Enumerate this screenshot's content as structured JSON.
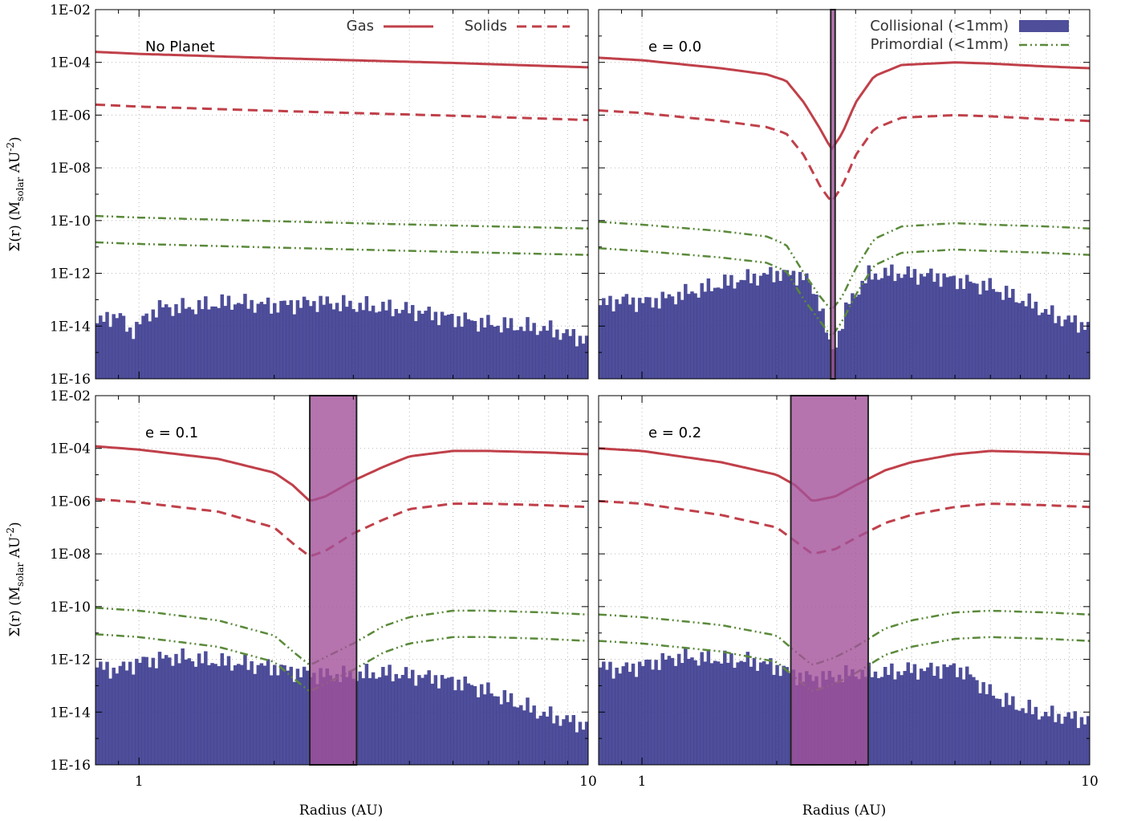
{
  "figure": {
    "y_label_sigma": "Σ(r) (M",
    "y_label_sub": "solar",
    "y_label_au": " AU",
    "y_label_sup": "-2",
    "y_label_close": ")",
    "x_label": "Radius (AU)"
  },
  "legend": {
    "gas": "Gas",
    "solids": "Solids",
    "collisional": "Collisional (<1mm)",
    "primordial": "Primordial (<1mm)"
  },
  "colors": {
    "gas": "#c0404a",
    "solids": "#c0404a",
    "primordial": "#5a8a3a",
    "collisional": "#3b3b8f",
    "planet_zone": "#a3519a"
  },
  "chart_data": [
    {
      "type": "line",
      "label": "No Planet",
      "xscale": "log",
      "yscale": "log",
      "xlim": [
        0.8,
        10
      ],
      "ylim": [
        1e-16,
        0.01
      ],
      "xticks": [
        "1",
        "10"
      ],
      "yticks": [
        "1E-02",
        "1E-04",
        "1E-06",
        "1E-08",
        "1E-10",
        "1E-12",
        "1E-14",
        "1E-16"
      ],
      "grid": true,
      "planet_zone": null,
      "series": [
        {
          "name": "Gas",
          "style": "solid",
          "x": [
            0.8,
            1,
            2,
            3,
            5,
            10
          ],
          "y": [
            0.00025,
            0.00021,
            0.000145,
            0.00012,
            9.5e-05,
            6.5e-05
          ]
        },
        {
          "name": "Solids",
          "style": "dash",
          "x": [
            0.8,
            1,
            2,
            3,
            5,
            10
          ],
          "y": [
            2.5e-06,
            2.1e-06,
            1.45e-06,
            1.2e-06,
            9.5e-07,
            6.5e-07
          ]
        },
        {
          "name": "Primordial (<1mm)",
          "style": "dashdotdot",
          "x": [
            0.8,
            1,
            2,
            3,
            5,
            10
          ],
          "y": [
            1.5e-10,
            1.3e-10,
            9.5e-11,
            8e-11,
            6.5e-11,
            5e-11
          ]
        },
        {
          "name": "Primordial (<1mm)",
          "style": "dashdotdot",
          "x": [
            0.8,
            1,
            2,
            3,
            5,
            10
          ],
          "y": [
            1.5e-11,
            1.3e-11,
            9.5e-12,
            8e-12,
            6.5e-12,
            5e-12
          ]
        },
        {
          "name": "Collisional (<1mm)",
          "style": "hist",
          "x": [
            0.8,
            0.9,
            0.95,
            1.0,
            1.1,
            1.3,
            1.6,
            2.0,
            2.5,
            3.0,
            4.0,
            5.0,
            6.0,
            8.0,
            10.0
          ],
          "y": [
            1.2e-14,
            3e-14,
            6e-15,
            1.2e-14,
            5e-14,
            5e-14,
            8e-14,
            6e-14,
            8e-14,
            6e-14,
            4e-14,
            2e-14,
            1.2e-14,
            8e-15,
            3e-15
          ]
        }
      ]
    },
    {
      "type": "line",
      "label": "e = 0.0",
      "xscale": "log",
      "yscale": "log",
      "xlim": [
        0.8,
        10
      ],
      "ylim": [
        1e-16,
        0.01
      ],
      "xticks": [
        "1",
        "10"
      ],
      "yticks": [],
      "grid": true,
      "planet_zone": [
        2.64,
        2.7
      ],
      "series": [
        {
          "name": "Gas",
          "style": "solid",
          "x": [
            0.8,
            1,
            1.5,
            1.9,
            2.1,
            2.3,
            2.5,
            2.65,
            2.8,
            3.0,
            3.3,
            3.8,
            5.0,
            6.0,
            8.0,
            10.0
          ],
          "y": [
            0.00015,
            0.00012,
            6e-05,
            3.5e-05,
            2e-05,
            3e-06,
            3e-07,
            5e-08,
            2e-07,
            3e-06,
            3e-05,
            8e-05,
            0.0001,
            9e-05,
            7e-05,
            6e-05
          ]
        },
        {
          "name": "Solids",
          "style": "dash",
          "x": [
            0.8,
            1,
            1.5,
            1.9,
            2.1,
            2.3,
            2.5,
            2.65,
            2.8,
            3.0,
            3.3,
            3.8,
            5.0,
            6.0,
            8.0,
            10.0
          ],
          "y": [
            1.5e-06,
            1.2e-06,
            6e-07,
            3.5e-07,
            2e-07,
            3e-08,
            2e-09,
            5e-10,
            2e-09,
            3e-08,
            3e-07,
            8e-07,
            1e-06,
            9e-07,
            7e-07,
            6e-07
          ]
        },
        {
          "name": "Primordial (<1mm)",
          "style": "dashdotdot",
          "x": [
            0.8,
            1,
            1.5,
            1.9,
            2.1,
            2.3,
            2.5,
            2.65,
            2.8,
            3.0,
            3.3,
            3.8,
            5.0,
            6.0,
            8.0,
            10.0
          ],
          "y": [
            9e-11,
            7e-11,
            4e-11,
            2.5e-11,
            1.2e-11,
            1e-12,
            1.3e-13,
            4e-14,
            1.3e-13,
            1.5e-12,
            2e-11,
            6e-11,
            8e-11,
            7e-11,
            6e-11,
            5e-11
          ]
        },
        {
          "name": "Primordial (<1mm)",
          "style": "dashdotdot",
          "x": [
            0.8,
            1,
            1.5,
            1.9,
            2.1,
            2.3,
            2.5,
            2.65,
            2.8,
            3.0,
            3.3,
            3.8,
            5.0,
            6.0,
            8.0,
            10.0
          ],
          "y": [
            9e-12,
            7e-12,
            4e-12,
            2.5e-12,
            1.2e-12,
            1e-13,
            1.5e-14,
            4e-15,
            1.5e-14,
            1.5e-13,
            2e-12,
            6e-12,
            8e-12,
            7e-12,
            6e-12,
            5e-12
          ]
        },
        {
          "name": "Collisional (<1mm)",
          "style": "hist",
          "x": [
            0.8,
            0.9,
            1.0,
            1.1,
            1.3,
            1.6,
            2.0,
            2.3,
            2.5,
            2.64,
            2.7,
            2.9,
            3.2,
            3.6,
            4.5,
            6.0,
            7.5,
            8.5,
            10.0
          ],
          "y": [
            6e-14,
            1e-13,
            8e-14,
            1e-13,
            2e-13,
            5e-13,
            1e-12,
            8e-13,
            8e-14,
            1e-15,
            2e-15,
            8e-14,
            8e-13,
            1e-12,
            8e-13,
            3e-13,
            6e-14,
            2e-14,
            1e-14
          ]
        }
      ]
    },
    {
      "type": "line",
      "label": "e = 0.1",
      "xscale": "log",
      "yscale": "log",
      "xlim": [
        0.8,
        10
      ],
      "ylim": [
        1e-16,
        0.01
      ],
      "xticks": [
        "1",
        "10"
      ],
      "yticks": [
        "1E-02",
        "1E-04",
        "1E-06",
        "1E-08",
        "1E-10",
        "1E-12",
        "1E-14",
        "1E-16"
      ],
      "grid": true,
      "planet_zone": [
        2.4,
        3.05
      ],
      "series": [
        {
          "name": "Gas",
          "style": "solid",
          "x": [
            0.8,
            1,
            1.5,
            2.0,
            2.2,
            2.4,
            2.6,
            3.0,
            3.5,
            4.0,
            5.0,
            6.0,
            8.0,
            10.0
          ],
          "y": [
            0.00012,
            9e-05,
            4e-05,
            1.2e-05,
            4e-06,
            1e-06,
            1.5e-06,
            6e-06,
            2e-05,
            5e-05,
            8e-05,
            8e-05,
            7e-05,
            6e-05
          ]
        },
        {
          "name": "Solids",
          "style": "dash",
          "x": [
            0.8,
            1,
            1.5,
            2.0,
            2.2,
            2.4,
            2.6,
            3.0,
            3.5,
            4.0,
            5.0,
            6.0,
            8.0,
            10.0
          ],
          "y": [
            1.2e-06,
            9e-07,
            4e-07,
            1e-07,
            2.5e-08,
            8e-09,
            1.3e-08,
            6e-08,
            2e-07,
            5e-07,
            8e-07,
            8e-07,
            7e-07,
            6e-07
          ]
        },
        {
          "name": "Primordial (<1mm)",
          "style": "dashdotdot",
          "x": [
            0.8,
            1,
            1.5,
            2.0,
            2.2,
            2.4,
            2.6,
            3.0,
            3.5,
            4.0,
            5.0,
            6.0,
            8.0,
            10.0
          ],
          "y": [
            9e-11,
            7e-11,
            3e-11,
            8e-12,
            2e-12,
            6e-13,
            1.2e-12,
            4e-12,
            1.8e-11,
            4e-11,
            7e-11,
            7e-11,
            6e-11,
            5e-11
          ]
        },
        {
          "name": "Primordial (<1mm)",
          "style": "dashdotdot",
          "x": [
            0.8,
            1,
            1.5,
            2.0,
            2.2,
            2.4,
            2.6,
            3.0,
            3.5,
            4.0,
            5.0,
            6.0,
            8.0,
            10.0
          ],
          "y": [
            9e-12,
            7e-12,
            3e-12,
            8e-13,
            2e-13,
            6e-14,
            1.2e-13,
            4e-13,
            1.8e-12,
            4e-12,
            7e-12,
            7e-12,
            6e-12,
            5e-12
          ]
        },
        {
          "name": "Collisional (<1mm)",
          "style": "hist",
          "x": [
            0.8,
            0.9,
            1.0,
            1.2,
            1.5,
            1.8,
            2.0,
            2.3,
            2.6,
            3.0,
            3.5,
            4.0,
            4.5,
            5.0,
            5.5,
            6.0,
            7.0,
            8.0,
            10.0
          ],
          "y": [
            5e-13,
            4e-13,
            8e-13,
            1.2e-12,
            8e-13,
            6e-13,
            5e-13,
            3e-13,
            2.5e-13,
            2.5e-13,
            3e-13,
            2.5e-13,
            2e-13,
            1.5e-13,
            1e-13,
            6e-14,
            2e-14,
            8e-15,
            3e-15
          ]
        }
      ]
    },
    {
      "type": "line",
      "label": "e = 0.2",
      "xscale": "log",
      "yscale": "log",
      "xlim": [
        0.8,
        10
      ],
      "ylim": [
        1e-16,
        0.01
      ],
      "xticks": [
        "1",
        "10"
      ],
      "yticks": [],
      "grid": true,
      "planet_zone": [
        2.15,
        3.2
      ],
      "series": [
        {
          "name": "Gas",
          "style": "solid",
          "x": [
            0.8,
            1,
            1.5,
            2.0,
            2.2,
            2.4,
            2.7,
            3.0,
            3.5,
            4.0,
            5.0,
            6.0,
            8.0,
            10.0
          ],
          "y": [
            0.0001,
            8e-05,
            3e-05,
            1e-05,
            4e-06,
            1e-06,
            1.5e-06,
            4e-06,
            1.5e-05,
            3e-05,
            6e-05,
            8e-05,
            7e-05,
            6e-05
          ]
        },
        {
          "name": "Solids",
          "style": "dash",
          "x": [
            0.8,
            1,
            1.5,
            2.0,
            2.2,
            2.4,
            2.7,
            3.0,
            3.5,
            4.0,
            5.0,
            6.0,
            8.0,
            10.0
          ],
          "y": [
            1e-06,
            8e-07,
            3e-07,
            1e-07,
            3e-08,
            1e-08,
            1.5e-08,
            4e-08,
            1.5e-07,
            3e-07,
            6e-07,
            8e-07,
            7e-07,
            6e-07
          ]
        },
        {
          "name": "Primordial (<1mm)",
          "style": "dashdotdot",
          "x": [
            0.8,
            1,
            1.5,
            2.0,
            2.2,
            2.4,
            2.7,
            3.0,
            3.5,
            4.0,
            5.0,
            6.0,
            8.0,
            10.0
          ],
          "y": [
            5e-11,
            4e-11,
            2e-11,
            8e-12,
            2e-12,
            6e-13,
            1.2e-12,
            3e-12,
            1.5e-11,
            3e-11,
            6e-11,
            7e-11,
            6e-11,
            5e-11
          ]
        },
        {
          "name": "Primordial (<1mm)",
          "style": "dashdotdot",
          "x": [
            0.8,
            1,
            1.5,
            2.0,
            2.2,
            2.4,
            2.7,
            3.0,
            3.5,
            4.0,
            5.0,
            6.0,
            8.0,
            10.0
          ],
          "y": [
            5e-12,
            4e-12,
            2e-12,
            8e-13,
            2e-13,
            6e-14,
            1.2e-13,
            3e-13,
            1.5e-12,
            3e-12,
            6e-12,
            7e-12,
            6e-12,
            5e-12
          ]
        },
        {
          "name": "Collisional (<1mm)",
          "style": "hist",
          "x": [
            0.8,
            0.9,
            1.0,
            1.2,
            1.5,
            1.8,
            2.0,
            2.3,
            2.6,
            3.0,
            3.5,
            4.0,
            4.5,
            5.0,
            5.5,
            6.0,
            7.0,
            8.0,
            10.0
          ],
          "y": [
            5e-13,
            4e-13,
            6e-13,
            1.2e-12,
            1e-12,
            8e-13,
            5e-13,
            2e-13,
            2e-13,
            3e-13,
            3e-13,
            4e-13,
            4e-13,
            5e-13,
            2e-13,
            5e-14,
            1.5e-14,
            8e-15,
            5e-15
          ]
        }
      ]
    }
  ]
}
